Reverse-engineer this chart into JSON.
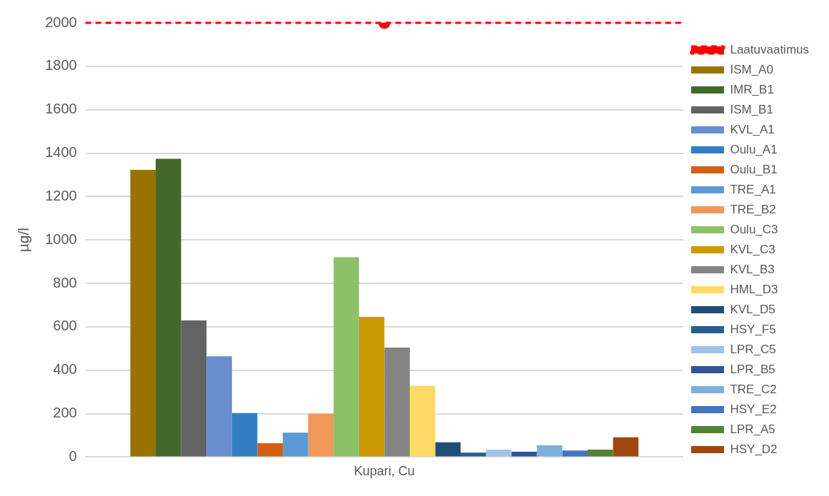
{
  "chart_data": {
    "type": "bar",
    "categories": [
      "Kupari, Cu"
    ],
    "ylabel": "µg/l",
    "ylim": [
      0,
      2000
    ],
    "yticks": [
      0,
      200,
      400,
      600,
      800,
      1000,
      1200,
      1400,
      1600,
      1800,
      2000
    ],
    "grid": "y",
    "legend": "right",
    "series": [
      {
        "name": "ISM_A0",
        "color": "#997300",
        "values": [
          1323
        ]
      },
      {
        "name": "IMR_B1",
        "color": "#43682b",
        "values": [
          1374
        ]
      },
      {
        "name": "ISM_B1",
        "color": "#636363",
        "values": [
          629
        ]
      },
      {
        "name": "KVL_A1",
        "color": "#698ed0",
        "values": [
          464
        ]
      },
      {
        "name": "Oulu_A1",
        "color": "#327dc2",
        "values": [
          203
        ]
      },
      {
        "name": "Oulu_B1",
        "color": "#d26012",
        "values": [
          64
        ]
      },
      {
        "name": "TRE_A1",
        "color": "#5b9bd5",
        "values": [
          112
        ]
      },
      {
        "name": "TRE_B2",
        "color": "#f1975a",
        "values": [
          200
        ]
      },
      {
        "name": "Oulu_C3",
        "color": "#8cc168",
        "values": [
          920
        ]
      },
      {
        "name": "KVL_C3",
        "color": "#cc9a00",
        "values": [
          646
        ]
      },
      {
        "name": "KVL_B3",
        "color": "#848484",
        "values": [
          504
        ]
      },
      {
        "name": "HML_D3",
        "color": "#ffd966",
        "values": [
          328
        ]
      },
      {
        "name": "KVL_D5",
        "color": "#1f4e79",
        "values": [
          68
        ]
      },
      {
        "name": "HSY_F5",
        "color": "#255e91",
        "values": [
          20
        ]
      },
      {
        "name": "LPR_C5",
        "color": "#9dc3e6",
        "values": [
          34
        ]
      },
      {
        "name": "LPR_B5",
        "color": "#2f5597",
        "values": [
          24
        ]
      },
      {
        "name": "TRE_C2",
        "color": "#7cafdd",
        "values": [
          54
        ]
      },
      {
        "name": "HSY_E2",
        "color": "#4472c4",
        "values": [
          30
        ]
      },
      {
        "name": "LPR_A5",
        "color": "#548235",
        "values": [
          34
        ]
      },
      {
        "name": "HSY_D2",
        "color": "#9e480e",
        "values": [
          91
        ]
      },
      {
        "name": "Laatuvaatimus",
        "type": "line",
        "color": "#ff0000",
        "values": [
          2000
        ],
        "line_style": "dashed",
        "marker": "circle"
      }
    ]
  }
}
